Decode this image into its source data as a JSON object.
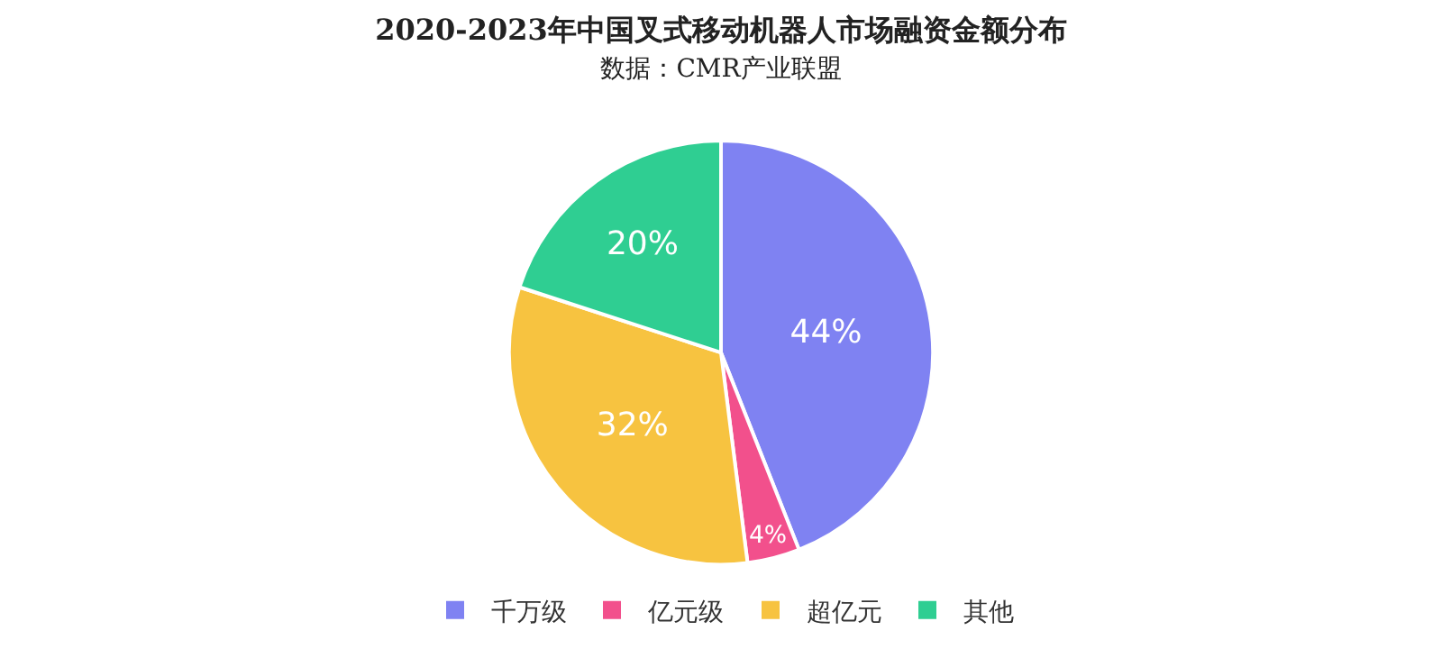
{
  "chart_data": {
    "type": "pie",
    "title": "2020-2023年中国叉式移动机器人市场融资金额分布",
    "subtitle": "数据：CMR产业联盟",
    "categories": [
      "千万级",
      "亿元级",
      "超亿元",
      "其他"
    ],
    "values": [
      44,
      4,
      32,
      20
    ],
    "value_labels": [
      "44%",
      "4%",
      "32%",
      "20%"
    ],
    "colors": [
      "#7f82f2",
      "#f2508c",
      "#f7c340",
      "#2fce92"
    ],
    "legend": "bottom"
  }
}
